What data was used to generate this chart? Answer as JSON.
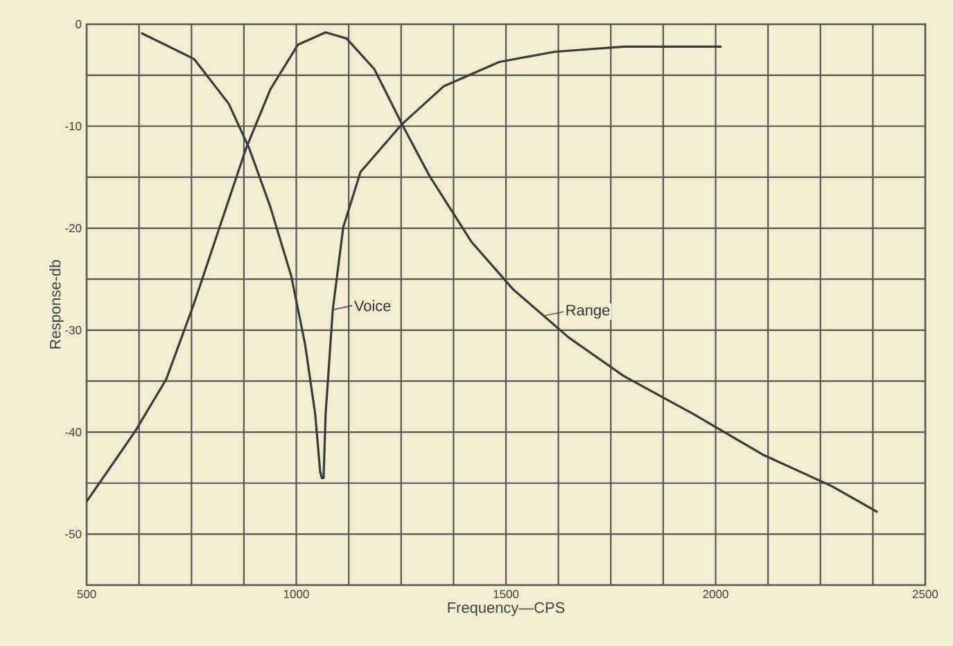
{
  "chart_data": {
    "type": "line",
    "xlabel": "Frequency—CPS",
    "ylabel": "Response-db",
    "xlim": [
      500,
      2500
    ],
    "ylim": [
      -55,
      0
    ],
    "xticks": [
      500,
      {
        "value": 625,
        "label": null
      },
      {
        "value": 750,
        "label": null
      },
      {
        "value": 875,
        "label": null
      },
      1000,
      {
        "value": 1125,
        "label": null
      },
      {
        "value": 1250,
        "label": null
      },
      {
        "value": 1375,
        "label": null
      },
      1500,
      {
        "value": 1625,
        "label": null
      },
      {
        "value": 1750,
        "label": null
      },
      {
        "value": 1875,
        "label": null
      },
      2000,
      {
        "value": 2125,
        "label": null
      },
      {
        "value": 2250,
        "label": null
      },
      {
        "value": 2375,
        "label": null
      },
      2500
    ],
    "yticks": [
      {
        "value": -55,
        "label": null
      },
      -50,
      {
        "value": -45,
        "label": null
      },
      -40,
      {
        "value": -35,
        "label": null
      },
      -30,
      {
        "value": -25,
        "label": null
      },
      -20,
      {
        "value": -15,
        "label": null
      },
      -10,
      {
        "value": -5,
        "label": null
      },
      0
    ],
    "grid": true,
    "marker": "none",
    "line_style": "solid",
    "series": [
      {
        "color": "#3a3a3a",
        "x": [
          632,
          756,
          839,
          888,
          938,
          988,
          1021,
          1045,
          1057,
          1061,
          1065,
          1070,
          1087,
          1112,
          1153,
          1252,
          1351,
          1484,
          1616,
          1781,
          2012
        ],
        "values": [
          -0.9,
          -3.4,
          -7.8,
          -12.2,
          -17.9,
          -24.7,
          -31.4,
          -38.2,
          -43.9,
          -44.5,
          -44.5,
          -38.2,
          -28,
          -19.9,
          -14.5,
          -9.8,
          -6.1,
          -3.7,
          -2.7,
          -2.2,
          -2.2
        ]
      },
      {
        "color": "#3a3a3a",
        "x": [
          500,
          616,
          690,
          756,
          822,
          880,
          938,
          1004,
          1070,
          1120,
          1186,
          1252,
          1318,
          1417,
          1517,
          1649,
          1781,
          1946,
          2112,
          2277,
          2384
        ],
        "values": [
          -46.8,
          -39.9,
          -34.8,
          -27.4,
          -19.3,
          -12.2,
          -6.4,
          -2,
          -0.8,
          -1.4,
          -4.4,
          -9.8,
          -14.9,
          -21.3,
          -26,
          -30.7,
          -34.5,
          -38.2,
          -42.2,
          -45.3,
          -47.8
        ]
      }
    ],
    "annotations": [
      {
        "text": "Voice",
        "x": 1087,
        "y": -28
      },
      {
        "text": "Range",
        "x": 1591,
        "y": -28.6
      }
    ]
  }
}
